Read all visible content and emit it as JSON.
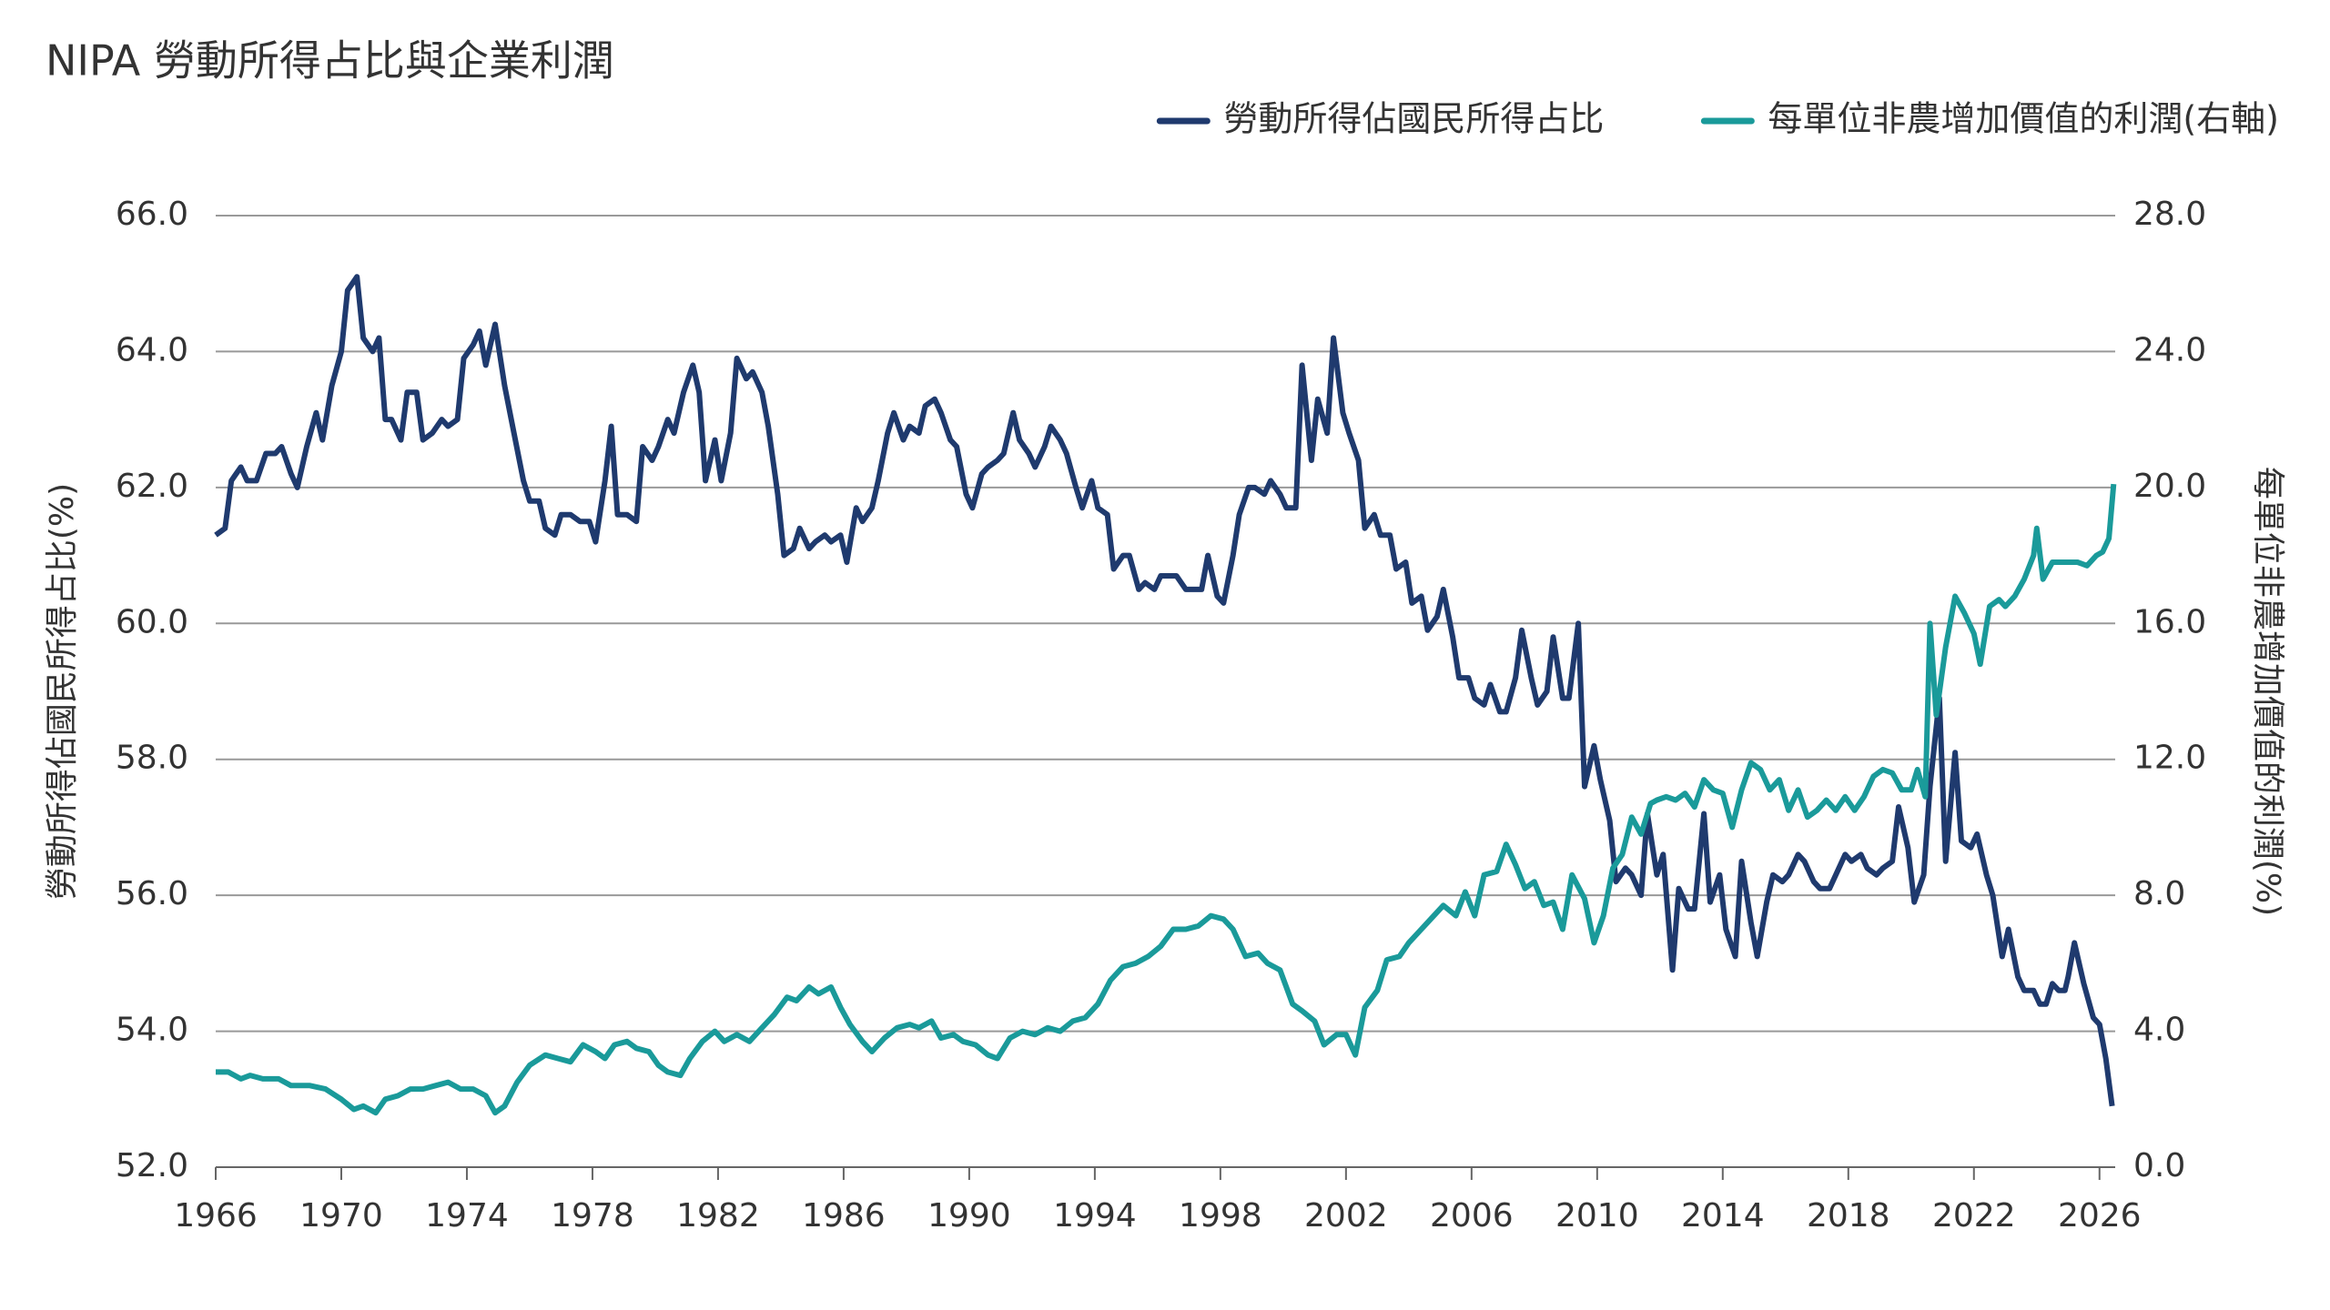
{
  "chart_data": {
    "type": "line",
    "title": "NIPA 勞動所得占比與企業利潤",
    "ylabel": "勞動所得佔國民所得占比(%)",
    "y2label": "每單位非農增加價值的利潤(%)",
    "xlim": [
      1966,
      2026.5
    ],
    "xticks": [
      1966,
      1970,
      1974,
      1978,
      1982,
      1986,
      1990,
      1994,
      1998,
      2002,
      2006,
      2010,
      2014,
      2018,
      2022,
      2026
    ],
    "ylim": [
      52,
      66
    ],
    "yticks": [
      {
        "value": 52,
        "label": "52.0"
      },
      {
        "value": 54,
        "label": "54.0"
      },
      {
        "value": 56,
        "label": "56.0"
      },
      {
        "value": 58,
        "label": "58.0"
      },
      {
        "value": 60,
        "label": "60.0"
      },
      {
        "value": 62,
        "label": "62.0"
      },
      {
        "value": 64,
        "label": "64.0"
      },
      {
        "value": 66,
        "label": "66.0"
      }
    ],
    "y2lim": [
      0,
      28
    ],
    "y2ticks": [
      {
        "value": 0,
        "label": "0.0"
      },
      {
        "value": 4,
        "label": "4.0"
      },
      {
        "value": 8,
        "label": "8.0"
      },
      {
        "value": 12,
        "label": "12.0"
      },
      {
        "value": 16,
        "label": "16.0"
      },
      {
        "value": 20,
        "label": "20.0"
      },
      {
        "value": 24,
        "label": "24.0"
      },
      {
        "value": 28,
        "label": "28.0"
      }
    ],
    "grid": true,
    "legend": "top-right",
    "series": [
      {
        "name": "勞動所得佔國民所得占比",
        "color": "#1f3a6e",
        "x": [
          1966.0,
          1966.3,
          1966.5,
          1966.8,
          1967.0,
          1967.3,
          1967.6,
          1967.9,
          1968.1,
          1968.4,
          1968.6,
          1968.9,
          1969.2,
          1969.4,
          1969.7,
          1970.0,
          1970.2,
          1970.5,
          1970.7,
          1971.0,
          1971.2,
          1971.4,
          1971.6,
          1971.9,
          1972.1,
          1972.4,
          1972.6,
          1972.9,
          1973.2,
          1973.4,
          1973.7,
          1973.9,
          1974.2,
          1974.4,
          1974.6,
          1974.9,
          1975.2,
          1975.5,
          1975.8,
          1976.0,
          1976.3,
          1976.5,
          1976.8,
          1977.0,
          1977.3,
          1977.6,
          1977.9,
          1978.1,
          1978.4,
          1978.6,
          1978.8,
          1979.1,
          1979.4,
          1979.6,
          1979.9,
          1980.1,
          1980.4,
          1980.6,
          1980.9,
          1981.2,
          1981.4,
          1981.6,
          1981.9,
          1982.1,
          1982.4,
          1982.6,
          1982.9,
          1983.1,
          1983.4,
          1983.6,
          1983.9,
          1984.1,
          1984.4,
          1984.6,
          1984.9,
          1985.1,
          1985.4,
          1985.6,
          1985.9,
          1986.1,
          1986.4,
          1986.6,
          1986.9,
          1987.1,
          1987.4,
          1987.6,
          1987.9,
          1988.1,
          1988.4,
          1988.6,
          1988.9,
          1989.1,
          1989.4,
          1989.6,
          1989.9,
          1990.1,
          1990.4,
          1990.6,
          1990.9,
          1991.1,
          1991.4,
          1991.6,
          1991.9,
          1992.1,
          1992.4,
          1992.6,
          1992.9,
          1993.1,
          1993.4,
          1993.6,
          1993.9,
          1994.1,
          1994.4,
          1994.6,
          1994.9,
          1995.1,
          1995.4,
          1995.6,
          1995.9,
          1996.1,
          1996.4,
          1996.6,
          1996.9,
          1997.1,
          1997.4,
          1997.6,
          1997.9,
          1998.1,
          1998.4,
          1998.6,
          1998.9,
          1999.1,
          1999.4,
          1999.6,
          1999.9,
          2000.1,
          2000.4,
          2000.6,
          2000.9,
          2001.1,
          2001.4,
          2001.6,
          2001.9,
          2002.1,
          2002.4,
          2002.6,
          2002.9,
          2003.1,
          2003.4,
          2003.6,
          2003.9,
          2004.1,
          2004.4,
          2004.6,
          2004.9,
          2005.1,
          2005.4,
          2005.6,
          2005.9,
          2006.1,
          2006.4,
          2006.6,
          2006.9,
          2007.1,
          2007.4,
          2007.6,
          2007.9,
          2008.1,
          2008.4,
          2008.6,
          2008.9,
          2009.1,
          2009.4,
          2009.6,
          2009.9,
          2010.1,
          2010.4,
          2010.6,
          2010.9,
          2011.1,
          2011.4,
          2011.6,
          2011.9,
          2012.1,
          2012.4,
          2012.6,
          2012.9,
          2013.1,
          2013.4,
          2013.6,
          2013.9,
          2014.1,
          2014.4,
          2014.6,
          2014.9,
          2015.1,
          2015.4,
          2015.6,
          2015.9,
          2016.1,
          2016.4,
          2016.6,
          2016.9,
          2017.1,
          2017.4,
          2017.6,
          2017.9,
          2018.1,
          2018.4,
          2018.6,
          2018.9,
          2019.1,
          2019.4,
          2019.6,
          2019.9,
          2020.1,
          2020.4,
          2020.6,
          2020.9,
          2021.1,
          2021.4,
          2021.6,
          2021.9,
          2022.1,
          2022.4,
          2022.6,
          2022.9,
          2023.1,
          2023.4,
          2023.6,
          2023.9,
          2024.1,
          2024.3,
          2024.5,
          2024.7,
          2024.9,
          2025.0,
          2025.2,
          2025.5,
          2025.8,
          2026.0,
          2026.2,
          2026.4
        ],
        "values": [
          61.3,
          61.4,
          62.1,
          62.3,
          62.1,
          62.1,
          62.5,
          62.5,
          62.6,
          62.2,
          62.0,
          62.6,
          63.1,
          62.7,
          63.5,
          64.0,
          64.9,
          65.1,
          64.2,
          64.0,
          64.2,
          63.0,
          63.0,
          62.7,
          63.4,
          63.4,
          62.7,
          62.8,
          63.0,
          62.9,
          63.0,
          63.9,
          64.1,
          64.3,
          63.8,
          64.4,
          63.5,
          62.8,
          62.1,
          61.8,
          61.8,
          61.4,
          61.3,
          61.6,
          61.6,
          61.5,
          61.5,
          61.2,
          62.1,
          62.9,
          61.6,
          61.6,
          61.5,
          62.6,
          62.4,
          62.6,
          63.0,
          62.8,
          63.4,
          63.8,
          63.4,
          62.1,
          62.7,
          62.1,
          62.8,
          63.9,
          63.6,
          63.7,
          63.4,
          62.9,
          61.9,
          61.0,
          61.1,
          61.4,
          61.1,
          61.2,
          61.3,
          61.2,
          61.3,
          60.9,
          61.7,
          61.5,
          61.7,
          62.1,
          62.8,
          63.1,
          62.7,
          62.9,
          62.8,
          63.2,
          63.3,
          63.1,
          62.7,
          62.6,
          61.9,
          61.7,
          62.2,
          62.3,
          62.4,
          62.5,
          63.1,
          62.7,
          62.5,
          62.3,
          62.6,
          62.9,
          62.7,
          62.5,
          62.0,
          61.7,
          62.1,
          61.7,
          61.6,
          60.8,
          61.0,
          61.0,
          60.5,
          60.6,
          60.5,
          60.7,
          60.7,
          60.7,
          60.5,
          60.5,
          60.5,
          61.0,
          60.4,
          60.3,
          61.0,
          61.6,
          62.0,
          62.0,
          61.9,
          62.1,
          61.9,
          61.7,
          61.7,
          63.8,
          62.4,
          63.3,
          62.8,
          64.2,
          63.1,
          62.8,
          62.4,
          61.4,
          61.6,
          61.3,
          61.3,
          60.8,
          60.9,
          60.3,
          60.4,
          59.9,
          60.1,
          60.5,
          59.8,
          59.2,
          59.2,
          58.9,
          58.8,
          59.1,
          58.7,
          58.7,
          59.2,
          59.9,
          59.2,
          58.8,
          59.0,
          59.8,
          58.9,
          58.9,
          60.0,
          57.6,
          58.2,
          57.7,
          57.1,
          56.2,
          56.4,
          56.3,
          56.0,
          57.2,
          56.3,
          56.6,
          54.9,
          56.1,
          55.8,
          55.8,
          57.2,
          55.9,
          56.3,
          55.5,
          55.1,
          56.5,
          55.6,
          55.1,
          55.9,
          56.3,
          56.2,
          56.3,
          56.6,
          56.5,
          56.2,
          56.1,
          56.1,
          56.3,
          56.6,
          56.5,
          56.6,
          56.4,
          56.3,
          56.4,
          56.5,
          57.3,
          56.7,
          55.9,
          56.3,
          57.6,
          58.9,
          56.5,
          58.1,
          56.8,
          56.7,
          56.9,
          56.3,
          56.0,
          55.1,
          55.5,
          54.8,
          54.6,
          54.6,
          54.4,
          54.4,
          54.7,
          54.6,
          54.6,
          54.8,
          55.3,
          54.7,
          54.2,
          54.1,
          53.6,
          52.9
        ]
      },
      {
        "name": "每單位非農增加價值的利潤(右軸)",
        "color": "#1a9a9a",
        "axis": "y2",
        "x": [
          1966.0,
          1966.4,
          1966.8,
          1967.1,
          1967.5,
          1968.0,
          1968.4,
          1969.0,
          1969.5,
          1970.0,
          1970.4,
          1970.7,
          1971.1,
          1971.4,
          1971.8,
          1972.2,
          1972.6,
          1973.0,
          1973.4,
          1973.8,
          1974.2,
          1974.6,
          1974.9,
          1975.2,
          1975.6,
          1976.0,
          1976.5,
          1976.9,
          1977.3,
          1977.7,
          1978.1,
          1978.4,
          1978.7,
          1979.1,
          1979.4,
          1979.8,
          1980.1,
          1980.4,
          1980.8,
          1981.1,
          1981.5,
          1981.9,
          1982.2,
          1982.6,
          1983.0,
          1983.4,
          1983.8,
          1984.2,
          1984.5,
          1984.9,
          1985.2,
          1985.6,
          1985.9,
          1986.2,
          1986.6,
          1986.9,
          1987.3,
          1987.7,
          1988.1,
          1988.4,
          1988.8,
          1989.1,
          1989.5,
          1989.8,
          1990.2,
          1990.6,
          1990.9,
          1991.3,
          1991.7,
          1992.1,
          1992.5,
          1992.9,
          1993.3,
          1993.7,
          1994.1,
          1994.5,
          1994.9,
          1995.3,
          1995.7,
          1996.1,
          1996.5,
          1996.9,
          1997.3,
          1997.7,
          1998.1,
          1998.4,
          1998.8,
          1999.2,
          1999.5,
          1999.9,
          2000.3,
          2000.6,
          2001.0,
          2001.3,
          2001.7,
          2002.0,
          2002.3,
          2002.6,
          2003.0,
          2003.3,
          2003.7,
          2004.0,
          2004.4,
          2004.8,
          2005.1,
          2005.5,
          2005.8,
          2006.1,
          2006.4,
          2006.8,
          2007.1,
          2007.4,
          2007.7,
          2008.0,
          2008.3,
          2008.6,
          2008.9,
          2009.2,
          2009.6,
          2009.9,
          2010.2,
          2010.5,
          2010.8,
          2011.1,
          2011.4,
          2011.7,
          2011.9,
          2012.2,
          2012.5,
          2012.8,
          2013.1,
          2013.4,
          2013.7,
          2014.0,
          2014.3,
          2014.6,
          2014.9,
          2015.2,
          2015.5,
          2015.8,
          2016.1,
          2016.4,
          2016.7,
          2017.0,
          2017.3,
          2017.6,
          2017.9,
          2018.2,
          2018.5,
          2018.8,
          2019.1,
          2019.4,
          2019.7,
          2020.0,
          2020.2,
          2020.45,
          2020.6,
          2020.8,
          2021.1,
          2021.4,
          2021.7,
          2022.0,
          2022.2,
          2022.5,
          2022.8,
          2023.0,
          2023.3,
          2023.6,
          2023.9,
          2024.0,
          2024.2,
          2024.5,
          2024.9,
          2025.3,
          2025.6,
          2025.9,
          2026.1,
          2026.3,
          2026.45
        ],
        "values": [
          2.8,
          2.8,
          2.6,
          2.7,
          2.6,
          2.6,
          2.4,
          2.4,
          2.3,
          2.0,
          1.7,
          1.8,
          1.6,
          2.0,
          2.1,
          2.3,
          2.3,
          2.4,
          2.5,
          2.3,
          2.3,
          2.1,
          1.6,
          1.8,
          2.5,
          3.0,
          3.3,
          3.2,
          3.1,
          3.6,
          3.4,
          3.2,
          3.6,
          3.7,
          3.5,
          3.4,
          3.0,
          2.8,
          2.7,
          3.2,
          3.7,
          4.0,
          3.7,
          3.9,
          3.7,
          4.1,
          4.5,
          5.0,
          4.9,
          5.3,
          5.1,
          5.3,
          4.7,
          4.2,
          3.7,
          3.4,
          3.8,
          4.1,
          4.2,
          4.1,
          4.3,
          3.8,
          3.9,
          3.7,
          3.6,
          3.3,
          3.2,
          3.8,
          4.0,
          3.9,
          4.1,
          4.0,
          4.3,
          4.4,
          4.8,
          5.5,
          5.9,
          6.0,
          6.2,
          6.5,
          7.0,
          7.0,
          7.1,
          7.4,
          7.3,
          7.0,
          6.2,
          6.3,
          6.0,
          5.8,
          4.8,
          4.6,
          4.3,
          3.6,
          3.9,
          3.9,
          3.3,
          4.7,
          5.2,
          6.1,
          6.2,
          6.6,
          7.0,
          7.4,
          7.7,
          7.4,
          8.1,
          7.4,
          8.6,
          8.7,
          9.5,
          8.9,
          8.2,
          8.4,
          7.7,
          7.8,
          7.0,
          8.6,
          7.9,
          6.6,
          7.4,
          8.8,
          9.2,
          10.3,
          9.8,
          10.7,
          10.8,
          10.9,
          10.8,
          11.0,
          10.6,
          11.4,
          11.1,
          11.0,
          10.0,
          11.1,
          11.9,
          11.7,
          11.1,
          11.4,
          10.5,
          11.1,
          10.3,
          10.5,
          10.8,
          10.5,
          10.9,
          10.5,
          10.9,
          11.5,
          11.7,
          11.6,
          11.1,
          11.1,
          11.7,
          10.9,
          16.0,
          13.3,
          15.3,
          16.8,
          16.3,
          15.7,
          14.8,
          16.5,
          16.7,
          16.5,
          16.8,
          17.3,
          18.0,
          18.8,
          17.3,
          17.8,
          17.8,
          17.8,
          17.7,
          18.0,
          18.1,
          18.5,
          20.1
        ]
      }
    ]
  }
}
